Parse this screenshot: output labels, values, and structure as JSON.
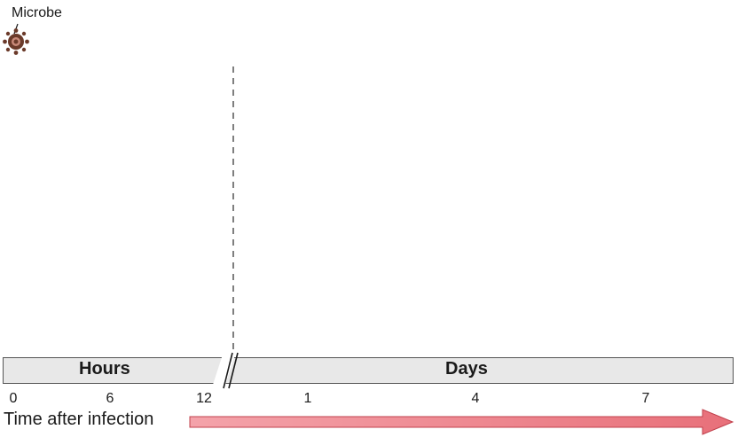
{
  "microbe": {
    "label": "Microbe",
    "icon": "microbe-icon",
    "color": "#6b3a2a"
  },
  "timeline": {
    "segments": [
      {
        "label": "Hours"
      },
      {
        "label": "Days"
      }
    ],
    "ticks": [
      {
        "label": "0",
        "unit": "hours"
      },
      {
        "label": "6",
        "unit": "hours"
      },
      {
        "label": "12",
        "unit": "hours"
      },
      {
        "label": "1",
        "unit": "days"
      },
      {
        "label": "4",
        "unit": "days"
      },
      {
        "label": "7",
        "unit": "days"
      }
    ],
    "axis_title": "Time after infection",
    "arrow_color": "#e8707a",
    "bar_color": "#e8e8e8"
  }
}
